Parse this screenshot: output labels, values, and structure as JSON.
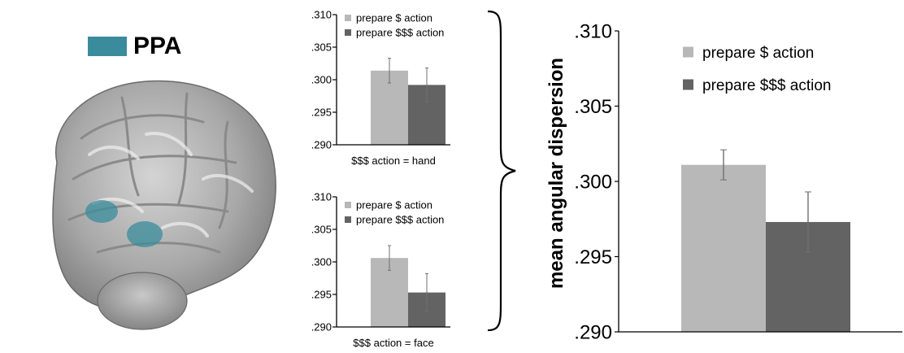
{
  "roi_legend": {
    "label": "PPA",
    "color": "#3A8C9C"
  },
  "brace": "curly-brace-right",
  "colors": {
    "light_bar": "#B8B8B8",
    "dark_bar": "#636363",
    "error_bar": "#707070",
    "axis": "#000000"
  },
  "chart_data": [
    {
      "id": "hand",
      "type": "bar",
      "xlabel": "$$$ action = hand",
      "ylabel": "",
      "ylim": [
        0.29,
        0.31
      ],
      "yticks": [
        0.31,
        0.305,
        0.3,
        0.295,
        0.29
      ],
      "ytick_labels": [
        ".310",
        ".305",
        ".300",
        ".295",
        ".290"
      ],
      "legend_position": "top-left",
      "series": [
        {
          "name": "prepare $ action",
          "value": 0.3014,
          "error": 0.0019,
          "color": "#B8B8B8"
        },
        {
          "name": "prepare $$$ action",
          "value": 0.2992,
          "error": 0.0026,
          "color": "#636363"
        }
      ]
    },
    {
      "id": "face",
      "type": "bar",
      "xlabel": "$$$ action = face",
      "ylabel": "",
      "ylim": [
        0.29,
        0.31
      ],
      "yticks": [
        0.31,
        0.305,
        0.3,
        0.295,
        0.29
      ],
      "ytick_labels": [
        ".310",
        ".305",
        ".300",
        ".295",
        ".290"
      ],
      "legend_position": "top-left",
      "series": [
        {
          "name": "prepare $ action",
          "value": 0.3006,
          "error": 0.0019,
          "color": "#B8B8B8"
        },
        {
          "name": "prepare $$$ action",
          "value": 0.2953,
          "error": 0.0029,
          "color": "#636363"
        }
      ]
    },
    {
      "id": "combined",
      "type": "bar",
      "xlabel": "",
      "ylabel": "mean angular dispersion",
      "ylim": [
        0.29,
        0.31
      ],
      "yticks": [
        0.31,
        0.305,
        0.3,
        0.295,
        0.29
      ],
      "ytick_labels": [
        ".310",
        ".305",
        ".300",
        ".295",
        ".290"
      ],
      "legend_position": "top",
      "series": [
        {
          "name": "prepare $ action",
          "value": 0.3011,
          "error": 0.001,
          "color": "#B8B8B8"
        },
        {
          "name": "prepare $$$ action",
          "value": 0.2973,
          "error": 0.002,
          "color": "#636363"
        }
      ]
    }
  ]
}
